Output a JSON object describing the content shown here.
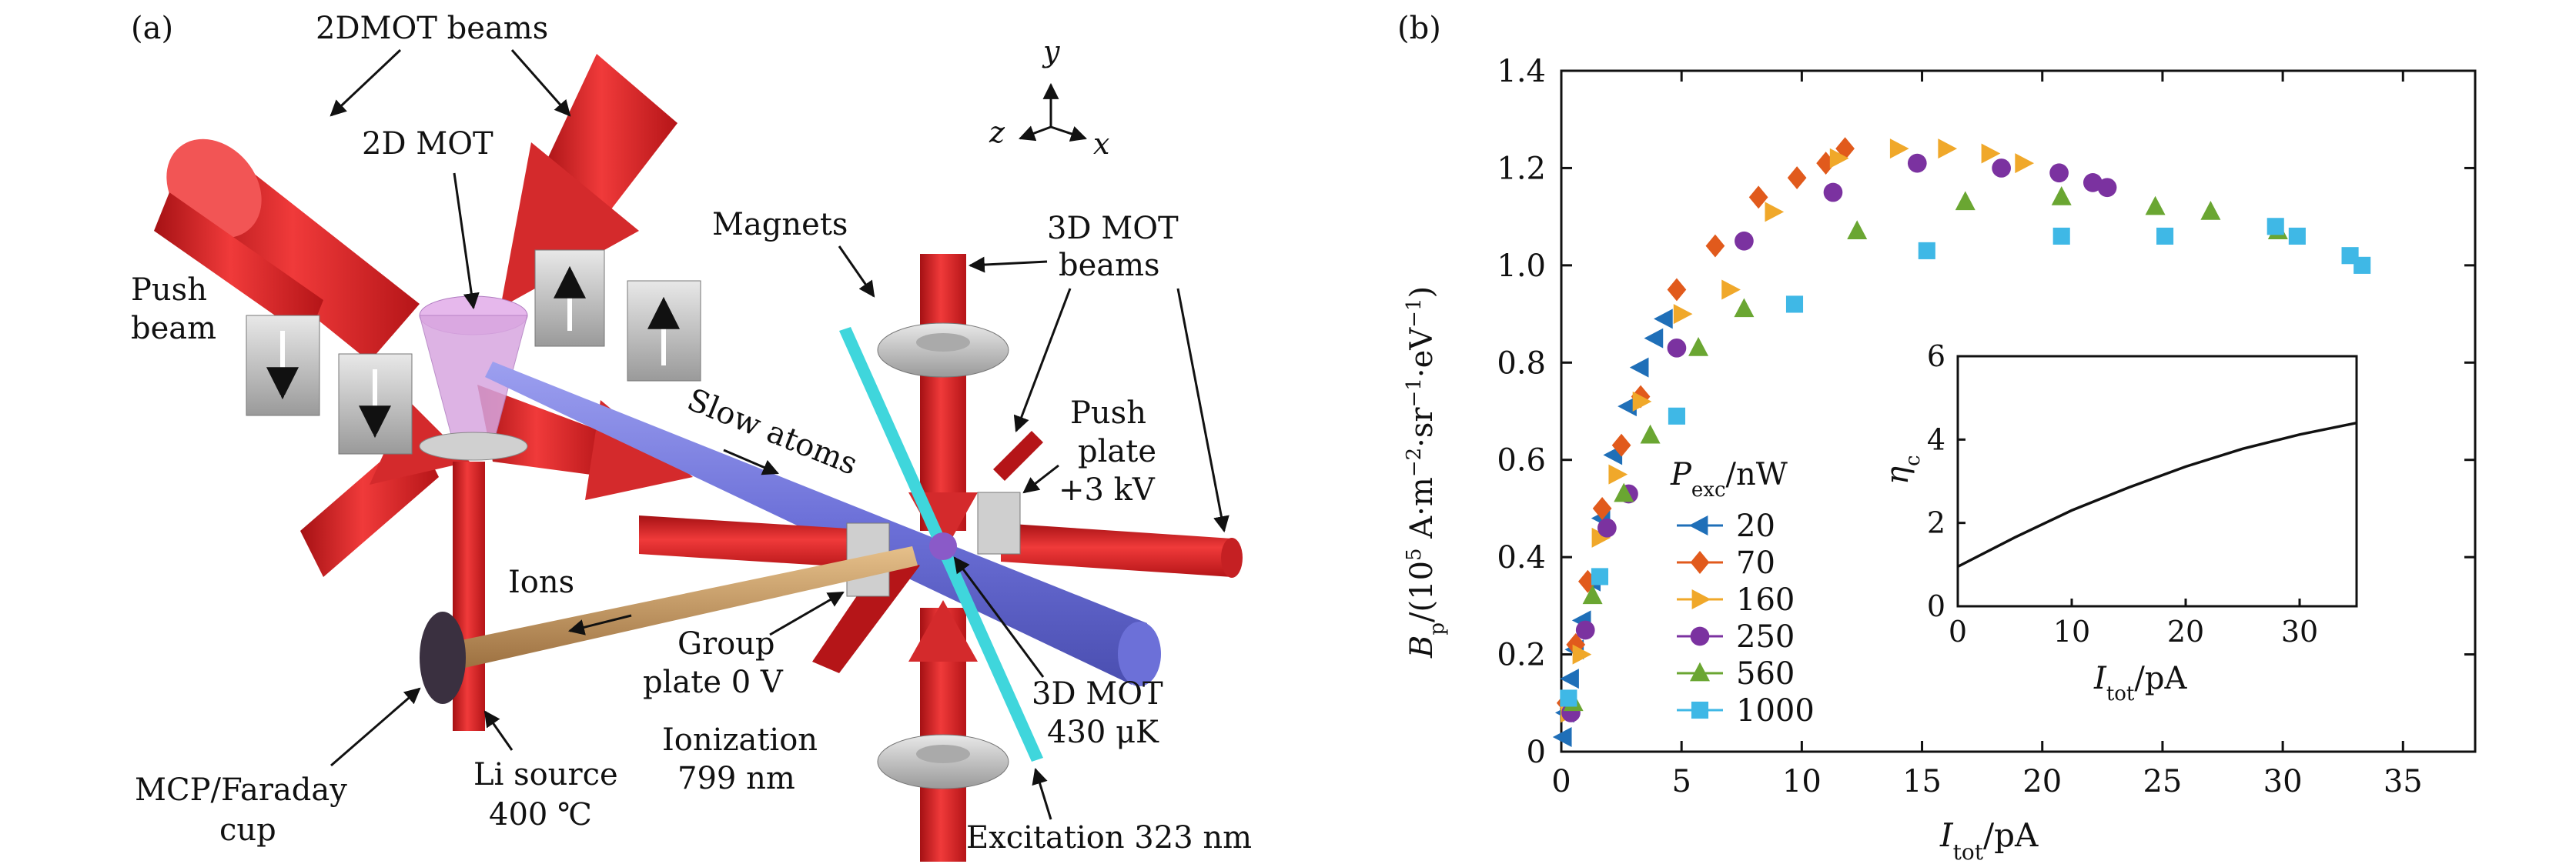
{
  "panel_a": {
    "label": "(a)",
    "labels": {
      "beams_2dmot": "2DMOT beams",
      "mot_2d": "2D MOT",
      "push_beam_1": "Push",
      "push_beam_2": "beam",
      "magnets": "Magnets",
      "beams_3dmot_1": "3D MOT",
      "beams_3dmot_2": "beams",
      "slow_atoms": "Slow atoms",
      "push_plate_1": "Push",
      "push_plate_2": "plate",
      "push_plate_3": "+3 kV",
      "ions": "Ions",
      "group_plate_1": "Group",
      "group_plate_2": "plate 0 V",
      "mot3d_1": "3D MOT",
      "mot3d_2": "430 μK",
      "ionization_1": "Ionization",
      "ionization_2": "799 nm",
      "li_source_1": "Li source",
      "li_source_2": "400 ℃",
      "mcp_1": "MCP/Faraday",
      "mcp_2": "cup",
      "excitation": "Excitation 323 nm",
      "axis_y": "y",
      "axis_z": "z",
      "axis_x": "x"
    },
    "colors": {
      "beam_red": "#e0282a",
      "atom_beam": "#7b7fe0",
      "cyan_beam": "#3fd6dc",
      "ion_tube": "#c89a5e",
      "magnet_gray": "#c8c8c8",
      "mot_cone": "#d8a6e0"
    }
  },
  "panel_b": {
    "label": "(b)",
    "legend_title": "P_exc/nW",
    "chart_data": {
      "type": "scatter",
      "xlabel": "I_tot/pA",
      "ylabel": "B_p/(10^5 A·m^-2·sr^-1·eV^-1)",
      "xlim": [
        0,
        38
      ],
      "ylim": [
        0,
        1.4
      ],
      "xticks": [
        0,
        5,
        10,
        15,
        20,
        25,
        30,
        35
      ],
      "yticks": [
        "0",
        "0.2",
        "0.4",
        "0.6",
        "0.8",
        "1.0",
        "1.2",
        "1.4"
      ],
      "series": [
        {
          "name": "20",
          "marker": "triangle-left",
          "color": "#1f6fb8",
          "x": [
            0.1,
            0.2,
            0.4,
            0.6,
            0.9,
            1.3,
            1.7,
            2.2,
            2.8,
            3.3,
            3.9,
            4.3
          ],
          "y": [
            0.03,
            0.08,
            0.15,
            0.21,
            0.27,
            0.35,
            0.48,
            0.61,
            0.71,
            0.79,
            0.85,
            0.89
          ]
        },
        {
          "name": "70",
          "marker": "diamond",
          "color": "#e15a1c",
          "x": [
            0.2,
            0.6,
            1.1,
            1.7,
            2.5,
            3.3,
            4.8,
            6.4,
            8.2,
            9.8,
            11.0,
            11.8
          ],
          "y": [
            0.1,
            0.22,
            0.35,
            0.5,
            0.63,
            0.73,
            0.95,
            1.04,
            1.14,
            1.18,
            1.21,
            1.24
          ]
        },
        {
          "name": "160",
          "marker": "triangle-right",
          "color": "#f0a82a",
          "x": [
            0.3,
            0.8,
            1.6,
            2.3,
            3.3,
            5.0,
            7.0,
            8.8,
            11.5,
            14.0,
            16.0,
            17.8,
            19.2
          ],
          "y": [
            0.08,
            0.2,
            0.44,
            0.57,
            0.72,
            0.9,
            0.95,
            1.11,
            1.22,
            1.24,
            1.24,
            1.23,
            1.21
          ]
        },
        {
          "name": "250",
          "marker": "circle",
          "color": "#7b32a0",
          "x": [
            0.4,
            1.0,
            1.9,
            2.8,
            4.8,
            7.6,
            11.3,
            14.8,
            18.3,
            20.7,
            22.1,
            22.7
          ],
          "y": [
            0.08,
            0.25,
            0.46,
            0.53,
            0.83,
            1.05,
            1.15,
            1.21,
            1.2,
            1.19,
            1.17,
            1.16
          ]
        },
        {
          "name": "560",
          "marker": "triangle-up",
          "color": "#6aa632",
          "x": [
            0.5,
            1.3,
            2.6,
            3.7,
            5.7,
            7.6,
            12.3,
            16.8,
            20.8,
            24.7,
            27.0,
            29.8
          ],
          "y": [
            0.1,
            0.32,
            0.53,
            0.65,
            0.83,
            0.91,
            1.07,
            1.13,
            1.14,
            1.12,
            1.11,
            1.07
          ]
        },
        {
          "name": "1000",
          "marker": "square",
          "color": "#3fb8e6",
          "x": [
            0.3,
            1.6,
            4.8,
            9.7,
            15.2,
            20.8,
            25.1,
            29.7,
            30.6,
            32.8,
            33.3
          ],
          "y": [
            0.11,
            0.36,
            0.69,
            0.92,
            1.03,
            1.06,
            1.06,
            1.08,
            1.06,
            1.02,
            1.0
          ]
        }
      ]
    },
    "inset_chart_data": {
      "type": "line",
      "xlabel": "I_tot/pA",
      "ylabel": "η_c",
      "xlim": [
        0,
        35
      ],
      "ylim": [
        0,
        6
      ],
      "xticks": [
        0,
        10,
        20,
        30
      ],
      "yticks": [
        0,
        2,
        4,
        6
      ],
      "x": [
        0,
        5,
        10,
        15,
        20,
        25,
        30,
        35
      ],
      "y": [
        0.95,
        1.65,
        2.3,
        2.85,
        3.35,
        3.78,
        4.12,
        4.4
      ]
    }
  }
}
